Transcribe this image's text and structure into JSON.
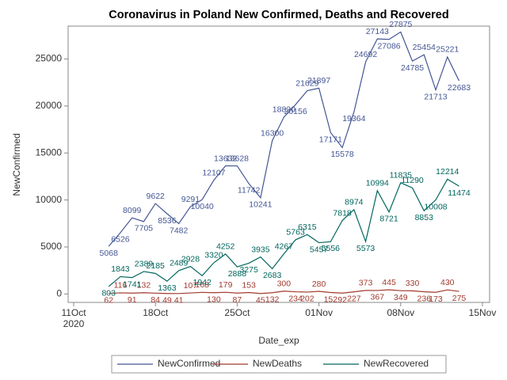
{
  "chart_data": {
    "type": "line",
    "title": "Coronavirus in Poland New Confirmed, Deaths and Recovered",
    "xlabel": "Date_exp",
    "ylabel": "NewConfirmed",
    "x": [
      "2020-10-14",
      "2020-10-15",
      "2020-10-16",
      "2020-10-17",
      "2020-10-18",
      "2020-10-19",
      "2020-10-20",
      "2020-10-21",
      "2020-10-22",
      "2020-10-23",
      "2020-10-24",
      "2020-10-25",
      "2020-10-26",
      "2020-10-27",
      "2020-10-28",
      "2020-10-29",
      "2020-10-30",
      "2020-10-31",
      "2020-11-01",
      "2020-11-02",
      "2020-11-03",
      "2020-11-04",
      "2020-11-05",
      "2020-11-06",
      "2020-11-07",
      "2020-11-08",
      "2020-11-09",
      "2020-11-10",
      "2020-11-11",
      "2020-11-12",
      "2020-11-13"
    ],
    "xlim": [
      "2020-10-11",
      "2020-11-15"
    ],
    "xticks": [
      {
        "value": "2020-10-11",
        "label": "11Oct 2020"
      },
      {
        "value": "2020-10-18",
        "label": "18Oct"
      },
      {
        "value": "2020-10-25",
        "label": "25Oct"
      },
      {
        "value": "2020-11-01",
        "label": "01Nov"
      },
      {
        "value": "2020-11-08",
        "label": "08Nov"
      },
      {
        "value": "2020-11-15",
        "label": "15Nov"
      }
    ],
    "ylim": [
      -900,
      28500
    ],
    "yticks": [
      0,
      5000,
      10000,
      15000,
      20000,
      25000
    ],
    "legend": "bottom",
    "series": [
      {
        "name": "NewConfirmed",
        "color": "#445694",
        "values": [
          5068,
          6526,
          8099,
          7705,
          9622,
          8536,
          7482,
          9291,
          10040,
          12107,
          13632,
          13628,
          11742,
          10241,
          16300,
          18820,
          20156,
          21629,
          21897,
          17171,
          15578,
          19364,
          24692,
          27143,
          27086,
          27875,
          24785,
          25454,
          21713,
          25221,
          22683
        ]
      },
      {
        "name": "NewDeaths",
        "color": "#a23a2e",
        "values": [
          62,
          116,
          91,
          132,
          84,
          49,
          41,
          107,
          168,
          130,
          179,
          87,
          153,
          45,
          132,
          300,
          234,
          202,
          280,
          152,
          92,
          227,
          373,
          367,
          445,
          349,
          330,
          236,
          173,
          430,
          275
        ]
      },
      {
        "name": "NewRecovered",
        "color": "#01665e",
        "values": [
          803,
          1843,
          1741,
          2389,
          2185,
          1363,
          2489,
          2928,
          1942,
          3320,
          4252,
          2888,
          3275,
          3935,
          2683,
          4267,
          5763,
          6315,
          5457,
          5556,
          7818,
          8974,
          5573,
          10994,
          8721,
          11835,
          11290,
          8853,
          10008,
          12214,
          11474
        ]
      }
    ]
  }
}
